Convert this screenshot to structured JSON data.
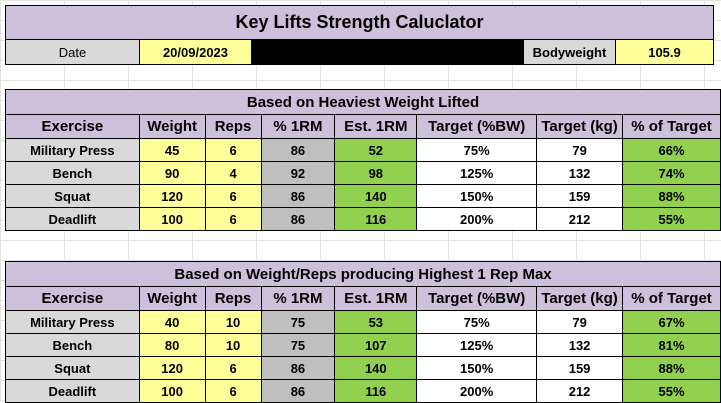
{
  "title": "Key Lifts Strength Caluclator",
  "info": {
    "date_label": "Date",
    "date_value": "20/09/2023",
    "bodyweight_label": "Bodyweight",
    "bodyweight_value": "105.9"
  },
  "colors": {
    "header_lavender": "#ccc0da",
    "input_yellow": "#ffff99",
    "percent_gray": "#bfbfbf",
    "result_green": "#92d050",
    "label_gray": "#d9d9d9"
  },
  "columns": [
    "Exercise",
    "Weight",
    "Reps",
    "% 1RM",
    "Est. 1RM",
    "Target (%BW)",
    "Target (kg)",
    "% of Target"
  ],
  "tables": [
    {
      "heading": "Based on Heaviest Weight Lifted",
      "rows": [
        {
          "exercise": "Military Press",
          "weight": "45",
          "reps": "6",
          "pct_1rm": "86",
          "est_1rm": "52",
          "target_bw": "75%",
          "target_kg": "79",
          "pct_target": "66%"
        },
        {
          "exercise": "Bench",
          "weight": "90",
          "reps": "4",
          "pct_1rm": "92",
          "est_1rm": "98",
          "target_bw": "125%",
          "target_kg": "132",
          "pct_target": "74%"
        },
        {
          "exercise": "Squat",
          "weight": "120",
          "reps": "6",
          "pct_1rm": "86",
          "est_1rm": "140",
          "target_bw": "150%",
          "target_kg": "159",
          "pct_target": "88%"
        },
        {
          "exercise": "Deadlift",
          "weight": "100",
          "reps": "6",
          "pct_1rm": "86",
          "est_1rm": "116",
          "target_bw": "200%",
          "target_kg": "212",
          "pct_target": "55%"
        }
      ]
    },
    {
      "heading": "Based on Weight/Reps producing Highest 1 Rep Max",
      "rows": [
        {
          "exercise": "Military Press",
          "weight": "40",
          "reps": "10",
          "pct_1rm": "75",
          "est_1rm": "53",
          "target_bw": "75%",
          "target_kg": "79",
          "pct_target": "67%"
        },
        {
          "exercise": "Bench",
          "weight": "80",
          "reps": "10",
          "pct_1rm": "75",
          "est_1rm": "107",
          "target_bw": "125%",
          "target_kg": "132",
          "pct_target": "81%"
        },
        {
          "exercise": "Squat",
          "weight": "120",
          "reps": "6",
          "pct_1rm": "86",
          "est_1rm": "140",
          "target_bw": "150%",
          "target_kg": "159",
          "pct_target": "88%"
        },
        {
          "exercise": "Deadlift",
          "weight": "100",
          "reps": "6",
          "pct_1rm": "86",
          "est_1rm": "116",
          "target_bw": "200%",
          "target_kg": "212",
          "pct_target": "55%"
        }
      ]
    }
  ]
}
